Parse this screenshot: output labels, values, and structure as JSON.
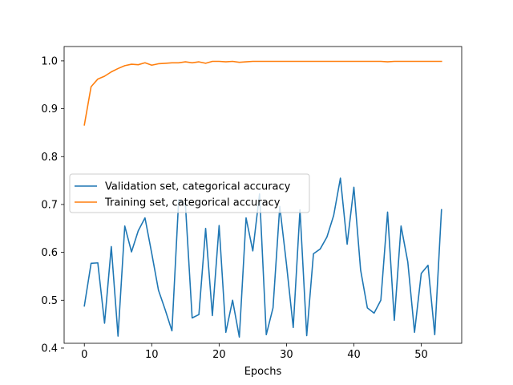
{
  "chart_data": {
    "type": "line",
    "title": "",
    "xlabel": "Epochs",
    "ylabel": "",
    "xlim": [
      -3,
      56
    ],
    "ylim": [
      0.41,
      1.03
    ],
    "xticks": [
      0,
      10,
      20,
      30,
      40,
      50
    ],
    "yticks": [
      0.4,
      0.5,
      0.6,
      0.7,
      0.8,
      0.9,
      1.0
    ],
    "ytick_labels": [
      "0.4",
      "0.5",
      "0.6",
      "0.7",
      "0.8",
      "0.9",
      "1.0"
    ],
    "legend_position": "center-left",
    "series": [
      {
        "name": "Validation set, categorical accuracy",
        "color": "#1f77b4",
        "x": [
          0,
          1,
          2,
          3,
          4,
          5,
          6,
          7,
          8,
          9,
          10,
          11,
          12,
          13,
          14,
          15,
          16,
          17,
          18,
          19,
          20,
          21,
          22,
          23,
          24,
          25,
          26,
          27,
          28,
          29,
          30,
          31,
          32,
          33,
          34,
          35,
          36,
          37,
          38,
          39,
          40,
          41,
          42,
          43,
          44,
          45,
          46,
          47,
          48,
          49,
          50,
          51,
          52,
          53
        ],
        "values": [
          0.488,
          0.577,
          0.578,
          0.452,
          0.612,
          0.425,
          0.655,
          0.601,
          0.645,
          0.672,
          0.598,
          0.521,
          0.48,
          0.436,
          0.71,
          0.7,
          0.463,
          0.47,
          0.65,
          0.468,
          0.656,
          0.433,
          0.5,
          0.423,
          0.672,
          0.603,
          0.722,
          0.428,
          0.484,
          0.696,
          0.575,
          0.443,
          0.689,
          0.426,
          0.597,
          0.607,
          0.632,
          0.677,
          0.755,
          0.617,
          0.736,
          0.563,
          0.484,
          0.473,
          0.5,
          0.684,
          0.458,
          0.655,
          0.58,
          0.433,
          0.556,
          0.573,
          0.428,
          0.689
        ]
      },
      {
        "name": "Training set, categorical accuracy",
        "color": "#ff7f0e",
        "x": [
          0,
          1,
          2,
          3,
          4,
          5,
          6,
          7,
          8,
          9,
          10,
          11,
          12,
          13,
          14,
          15,
          16,
          17,
          18,
          19,
          20,
          21,
          22,
          23,
          24,
          25,
          26,
          27,
          28,
          29,
          30,
          31,
          32,
          33,
          34,
          35,
          36,
          37,
          38,
          39,
          40,
          41,
          42,
          43,
          44,
          45,
          46,
          47,
          48,
          49,
          50,
          51,
          52,
          53
        ],
        "values": [
          0.866,
          0.946,
          0.962,
          0.968,
          0.977,
          0.984,
          0.99,
          0.993,
          0.992,
          0.996,
          0.991,
          0.994,
          0.995,
          0.996,
          0.996,
          0.998,
          0.996,
          0.998,
          0.995,
          0.999,
          0.999,
          0.998,
          0.999,
          0.997,
          0.998,
          0.999,
          0.999,
          0.999,
          0.999,
          0.999,
          0.999,
          0.999,
          0.999,
          0.999,
          0.999,
          0.999,
          0.999,
          0.999,
          0.999,
          0.999,
          0.999,
          0.999,
          0.999,
          0.999,
          0.999,
          0.998,
          0.999,
          0.999,
          0.999,
          0.999,
          0.999,
          0.999,
          0.999,
          0.999
        ]
      }
    ]
  }
}
